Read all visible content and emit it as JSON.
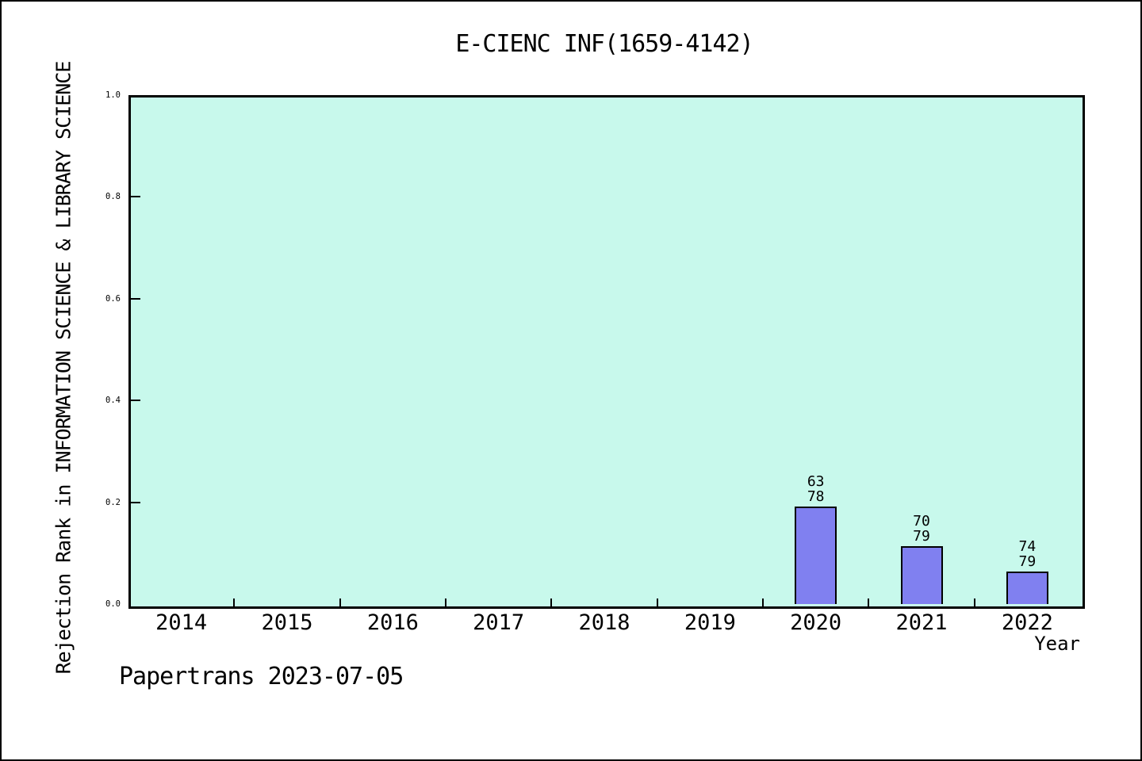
{
  "footer": {
    "credit": "Papertrans 2023-07-05"
  },
  "chart_data": {
    "type": "bar",
    "title": "E-CIENC INF(1659-4142)",
    "xlabel": "Year",
    "ylabel": "Rejection Rank in INFORMATION SCIENCE & LIBRARY SCIENCE",
    "categories": [
      "2014",
      "2015",
      "2016",
      "2017",
      "2018",
      "2019",
      "2020",
      "2021",
      "2022"
    ],
    "values": [
      null,
      null,
      null,
      null,
      null,
      null,
      0.1923,
      0.1139,
      0.0633
    ],
    "bar_label_lines": [
      null,
      null,
      null,
      null,
      null,
      null,
      [
        "63",
        "78"
      ],
      [
        "70",
        "79"
      ],
      [
        "74",
        "79"
      ]
    ],
    "annotations": [
      {
        "category": "2020",
        "rank": "63",
        "total": "78"
      },
      {
        "category": "2021",
        "rank": "70",
        "total": "79"
      },
      {
        "category": "2022",
        "rank": "74",
        "total": "79"
      }
    ],
    "ylim": [
      0.0,
      1.0
    ],
    "yticks": [
      1.0,
      0.8,
      0.6,
      0.4,
      0.2,
      0.0
    ],
    "ytick_labels": [
      "1.0",
      "0.8",
      "0.6",
      "0.4",
      "0.2",
      "0.0"
    ],
    "grid": false,
    "legend_position": "none",
    "minor_ticks_between_categories": true,
    "colors": {
      "plot_bg": "#c8f9ec",
      "bar_fill": "#8080f0",
      "bar_edge": "#000000",
      "canvas_bg": "#ffffff",
      "frame": "#000000"
    }
  }
}
